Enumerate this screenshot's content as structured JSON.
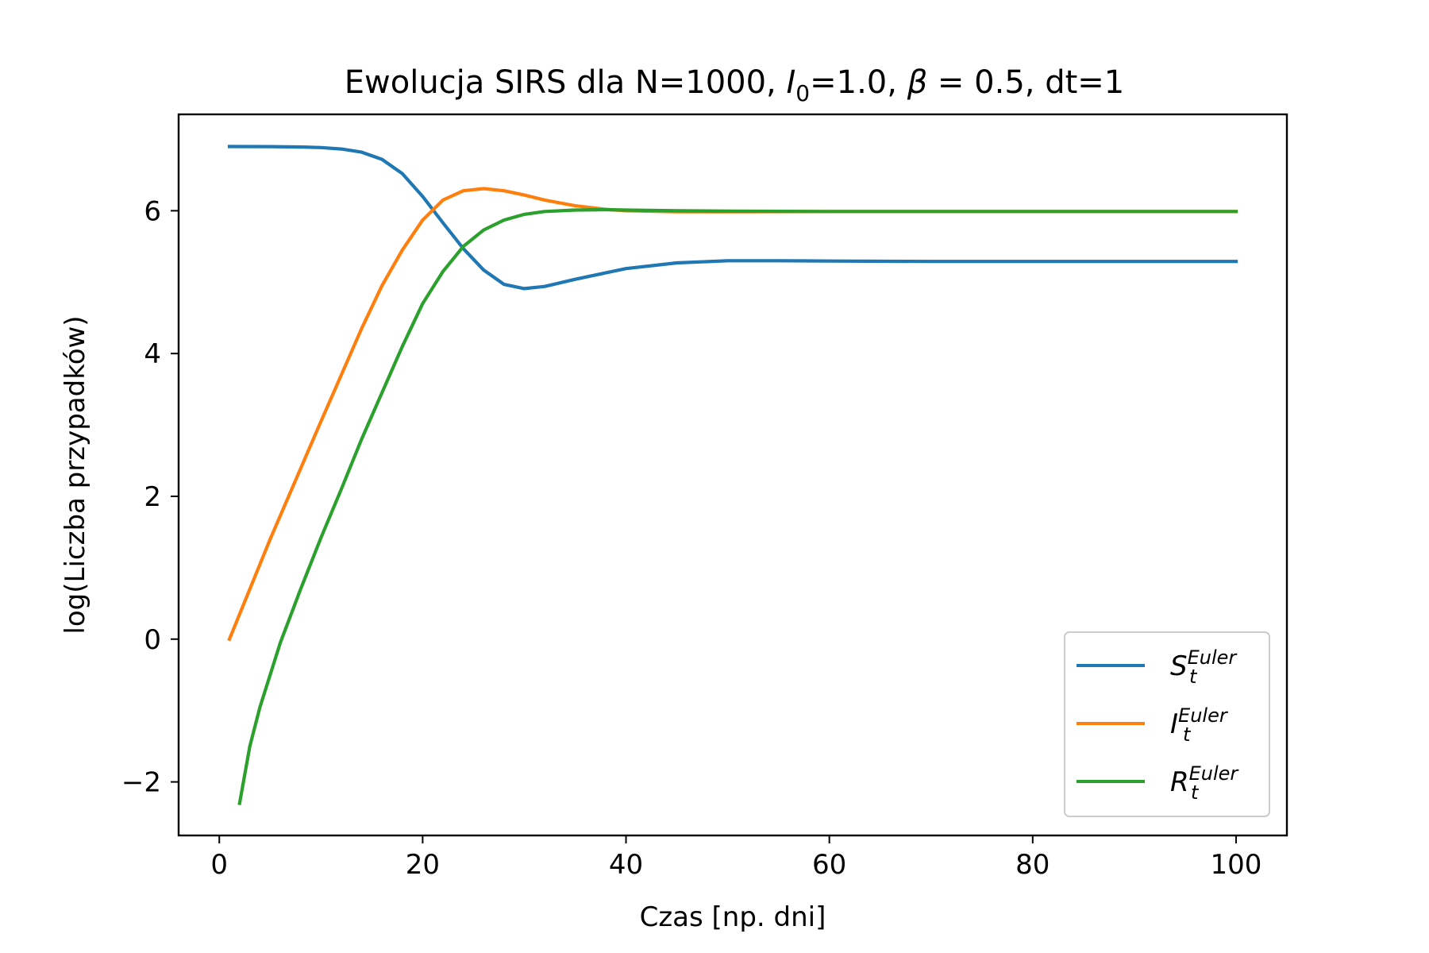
{
  "chart_data": {
    "type": "line",
    "title": {
      "prefix": "Ewolucja SIRS dla N=1000, ",
      "i_sym": "I",
      "i_sub": "0",
      "i_suffix": "=1.0, ",
      "beta_sym": "β",
      "beta_suffix": " = 0.5, dt=1"
    },
    "xlabel": "Czas [np. dni]",
    "ylabel": "log(Liczba przypadków)",
    "xlim": [
      -4,
      105
    ],
    "ylim": [
      -2.75,
      7.35
    ],
    "xticks": [
      0,
      20,
      40,
      60,
      80,
      100
    ],
    "xtick_labels": [
      "0",
      "20",
      "40",
      "60",
      "80",
      "100"
    ],
    "yticks": [
      -2,
      0,
      2,
      4,
      6
    ],
    "ytick_labels": [
      "−2",
      "0",
      "2",
      "4",
      "6"
    ],
    "grid": false,
    "legend_position": "bottom-right",
    "series": [
      {
        "id": "S",
        "legend": {
          "main": "S",
          "sub": "t",
          "sup": "Euler"
        },
        "color": "#1f77b4",
        "points": [
          [
            1,
            6.9
          ],
          [
            5,
            6.898
          ],
          [
            8,
            6.893
          ],
          [
            10,
            6.885
          ],
          [
            12,
            6.865
          ],
          [
            14,
            6.82
          ],
          [
            16,
            6.72
          ],
          [
            18,
            6.52
          ],
          [
            20,
            6.2
          ],
          [
            22,
            5.83
          ],
          [
            24,
            5.47
          ],
          [
            26,
            5.17
          ],
          [
            28,
            4.97
          ],
          [
            30,
            4.91
          ],
          [
            32,
            4.94
          ],
          [
            35,
            5.04
          ],
          [
            40,
            5.19
          ],
          [
            45,
            5.27
          ],
          [
            50,
            5.3
          ],
          [
            55,
            5.3
          ],
          [
            60,
            5.295
          ],
          [
            70,
            5.29
          ],
          [
            80,
            5.29
          ],
          [
            100,
            5.29
          ]
        ]
      },
      {
        "id": "I",
        "legend": {
          "main": "I",
          "sub": "t",
          "sup": "Euler"
        },
        "color": "#ff7f0e",
        "points": [
          [
            1,
            0.0
          ],
          [
            5,
            1.4
          ],
          [
            10,
            3.05
          ],
          [
            14,
            4.35
          ],
          [
            16,
            4.95
          ],
          [
            18,
            5.45
          ],
          [
            20,
            5.87
          ],
          [
            22,
            6.15
          ],
          [
            24,
            6.28
          ],
          [
            26,
            6.31
          ],
          [
            28,
            6.28
          ],
          [
            30,
            6.22
          ],
          [
            32,
            6.15
          ],
          [
            35,
            6.07
          ],
          [
            38,
            6.02
          ],
          [
            40,
            6.0
          ],
          [
            45,
            5.985
          ],
          [
            50,
            5.985
          ],
          [
            60,
            5.99
          ],
          [
            100,
            5.99
          ]
        ]
      },
      {
        "id": "R",
        "legend": {
          "main": "R",
          "sub": "t",
          "sup": "Euler"
        },
        "color": "#2ca02c",
        "points": [
          [
            2,
            -2.3
          ],
          [
            3,
            -1.5
          ],
          [
            4,
            -0.95
          ],
          [
            5,
            -0.5
          ],
          [
            6,
            -0.05
          ],
          [
            8,
            0.7
          ],
          [
            10,
            1.42
          ],
          [
            12,
            2.1
          ],
          [
            14,
            2.8
          ],
          [
            16,
            3.45
          ],
          [
            18,
            4.1
          ],
          [
            20,
            4.7
          ],
          [
            22,
            5.15
          ],
          [
            24,
            5.5
          ],
          [
            26,
            5.73
          ],
          [
            28,
            5.87
          ],
          [
            30,
            5.95
          ],
          [
            32,
            5.99
          ],
          [
            35,
            6.01
          ],
          [
            38,
            6.015
          ],
          [
            40,
            6.01
          ],
          [
            45,
            6.0
          ],
          [
            50,
            5.995
          ],
          [
            60,
            5.99
          ],
          [
            100,
            5.99
          ]
        ]
      }
    ]
  }
}
